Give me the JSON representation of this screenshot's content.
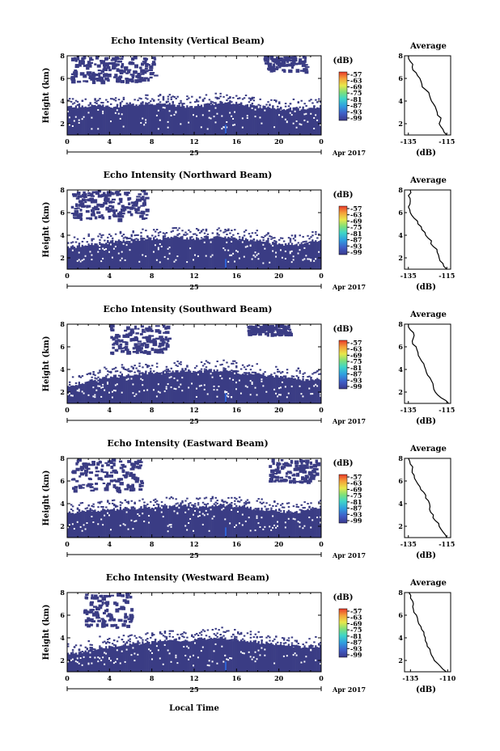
{
  "chart_data": [
    {
      "type": "heatmap",
      "title": "Echo Intensity (Vertical Beam)",
      "ylabel": "Height (km)",
      "x_ticks": [
        "0",
        "4",
        "8",
        "12",
        "16",
        "20",
        "0"
      ],
      "xlim": [
        0,
        24
      ],
      "ylim": [
        1,
        8
      ],
      "y_ticks": [
        "2",
        "4",
        "6",
        "8"
      ],
      "date_day": "25",
      "date_label": "Apr 2017",
      "colorbar": {
        "unit": "(dB)",
        "ticks": [
          "-57",
          "-63",
          "-69",
          "-75",
          "-81",
          "-87",
          "-93",
          "-99"
        ]
      },
      "echo_top_km": [
        3.5,
        3.55,
        3.6,
        3.55,
        3.5,
        3.6,
        3.7,
        3.8,
        3.7,
        3.7,
        3.6,
        3.5,
        3.6,
        3.7,
        3.9,
        3.8,
        3.7,
        3.6,
        3.5,
        3.4,
        3.3,
        3.3,
        3.4,
        3.5,
        3.6
      ],
      "upper_patches": [
        {
          "from_h": 0.3,
          "to_h": 8.3,
          "bottom_km": 5.8
        },
        {
          "from_h": 18.5,
          "to_h": 22.5,
          "bottom_km": 6.7
        }
      ],
      "average": {
        "title": "Average",
        "xlabel": "(dB)",
        "x_ticks": [
          "-135",
          "-115"
        ],
        "y_ticks": [
          "2",
          "4",
          "6",
          "8"
        ],
        "xlim": [
          -137,
          -113
        ],
        "ylim": [
          1,
          8
        ],
        "profile": {
          "height_km": [
            1.0,
            1.5,
            2.0,
            2.5,
            3.0,
            3.5,
            4.0,
            4.5,
            5.0,
            5.5,
            6.0,
            6.5,
            7.0,
            7.5,
            8.0
          ],
          "db": [
            -115,
            -117,
            -119,
            -118,
            -120,
            -121,
            -123,
            -124,
            -126,
            -128,
            -129,
            -131,
            -133,
            -134,
            -135
          ]
        }
      }
    },
    {
      "type": "heatmap",
      "title": "Echo Intensity (Northward Beam)",
      "ylabel": "Height (km)",
      "x_ticks": [
        "0",
        "4",
        "8",
        "12",
        "16",
        "20",
        "0"
      ],
      "xlim": [
        0,
        24
      ],
      "ylim": [
        1,
        8
      ],
      "y_ticks": [
        "2",
        "4",
        "6",
        "8"
      ],
      "date_day": "25",
      "date_label": "Apr 2017",
      "colorbar": {
        "unit": "(dB)",
        "ticks": [
          "-57",
          "-63",
          "-69",
          "-75",
          "-81",
          "-87",
          "-93",
          "-99"
        ]
      },
      "echo_top_km": [
        3.0,
        3.1,
        3.2,
        3.3,
        3.4,
        3.5,
        3.6,
        3.7,
        3.7,
        3.8,
        3.8,
        3.7,
        3.7,
        3.8,
        3.9,
        3.8,
        3.7,
        3.6,
        3.5,
        3.3,
        3.2,
        3.2,
        3.3,
        3.5,
        3.6
      ],
      "upper_patches": [
        {
          "from_h": 0.3,
          "to_h": 7.5,
          "bottom_km": 5.5
        }
      ],
      "average": {
        "title": "Average",
        "xlabel": "(dB)",
        "x_ticks": [
          "-135",
          "-115"
        ],
        "y_ticks": [
          "2",
          "4",
          "6",
          "8"
        ],
        "xlim": [
          -137,
          -113
        ],
        "ylim": [
          1,
          8
        ],
        "profile": {
          "height_km": [
            1.0,
            1.5,
            2.0,
            2.5,
            3.0,
            3.5,
            4.0,
            4.5,
            5.0,
            5.5,
            6.0,
            6.5,
            7.0,
            7.5,
            8.0
          ],
          "db": [
            -115,
            -117,
            -119,
            -120,
            -122,
            -123,
            -126,
            -128,
            -130,
            -132,
            -134,
            -135,
            -134,
            -135,
            -134
          ]
        }
      }
    },
    {
      "type": "heatmap",
      "title": "Echo Intensity (Southward Beam)",
      "ylabel": "Height (km)",
      "x_ticks": [
        "0",
        "4",
        "8",
        "12",
        "16",
        "20",
        "0"
      ],
      "xlim": [
        0,
        24
      ],
      "ylim": [
        1,
        8
      ],
      "y_ticks": [
        "2",
        "4",
        "6",
        "8"
      ],
      "date_day": "25",
      "date_label": "Apr 2017",
      "colorbar": {
        "unit": "(dB)",
        "ticks": [
          "-57",
          "-63",
          "-69",
          "-75",
          "-81",
          "-87",
          "-93",
          "-99"
        ]
      },
      "echo_top_km": [
        2.6,
        2.8,
        3.0,
        3.2,
        3.4,
        3.5,
        3.6,
        3.7,
        3.7,
        3.8,
        3.8,
        3.8,
        3.8,
        3.9,
        3.9,
        3.8,
        3.7,
        3.6,
        3.5,
        3.4,
        3.3,
        3.2,
        3.1,
        3.1,
        3.0
      ],
      "upper_patches": [
        {
          "from_h": 4.0,
          "to_h": 9.5,
          "bottom_km": 5.5
        },
        {
          "from_h": 17.0,
          "to_h": 21.0,
          "bottom_km": 7.2
        }
      ],
      "average": {
        "title": "Average",
        "xlabel": "(dB)",
        "x_ticks": [
          "-135",
          "-115"
        ],
        "y_ticks": [
          "2",
          "4",
          "6",
          "8"
        ],
        "xlim": [
          -137,
          -113
        ],
        "ylim": [
          1,
          8
        ],
        "profile": {
          "height_km": [
            1.0,
            1.5,
            2.0,
            2.5,
            3.0,
            3.5,
            4.0,
            4.5,
            5.0,
            5.5,
            6.0,
            6.5,
            7.0,
            7.5,
            8.0
          ],
          "db": [
            -114,
            -118,
            -121,
            -122,
            -123,
            -125,
            -126,
            -127,
            -129,
            -130,
            -131,
            -133,
            -132,
            -134,
            -135
          ]
        }
      }
    },
    {
      "type": "heatmap",
      "title": "Echo Intensity (Eastward Beam)",
      "ylabel": "Height (km)",
      "x_ticks": [
        "0",
        "4",
        "8",
        "12",
        "16",
        "20",
        "0"
      ],
      "xlim": [
        0,
        24
      ],
      "ylim": [
        1,
        8
      ],
      "y_ticks": [
        "2",
        "4",
        "6",
        "8"
      ],
      "date_day": "25",
      "date_label": "Apr 2017",
      "colorbar": {
        "unit": "(dB)",
        "ticks": [
          "-57",
          "-63",
          "-69",
          "-75",
          "-81",
          "-87",
          "-93",
          "-99"
        ]
      },
      "echo_top_km": [
        3.2,
        3.3,
        3.4,
        3.4,
        3.5,
        3.6,
        3.6,
        3.7,
        3.7,
        3.7,
        3.8,
        3.8,
        3.7,
        3.8,
        3.9,
        3.8,
        3.7,
        3.6,
        3.5,
        3.4,
        3.3,
        3.3,
        3.4,
        3.5,
        3.6
      ],
      "upper_patches": [
        {
          "from_h": 0.3,
          "to_h": 7.0,
          "bottom_km": 5.2
        },
        {
          "from_h": 19.0,
          "to_h": 23.5,
          "bottom_km": 6.0
        }
      ],
      "average": {
        "title": "Average",
        "xlabel": "(dB)",
        "x_ticks": [
          "-135",
          "-115"
        ],
        "y_ticks": [
          "2",
          "4",
          "6",
          "8"
        ],
        "xlim": [
          -137,
          -113
        ],
        "ylim": [
          1,
          8
        ],
        "profile": {
          "height_km": [
            1.0,
            1.5,
            2.0,
            2.5,
            3.0,
            3.5,
            4.0,
            4.5,
            5.0,
            5.5,
            6.0,
            6.5,
            7.0,
            7.5,
            8.0
          ],
          "db": [
            -115,
            -117,
            -119,
            -121,
            -122,
            -124,
            -124,
            -126,
            -127,
            -129,
            -131,
            -132,
            -133,
            -134,
            -135
          ]
        }
      }
    },
    {
      "type": "heatmap",
      "title": "Echo Intensity (Westward Beam)",
      "ylabel": "Height (km)",
      "x_ticks": [
        "0",
        "4",
        "8",
        "12",
        "16",
        "20",
        "0"
      ],
      "xlim": [
        0,
        24
      ],
      "ylim": [
        1,
        8
      ],
      "y_ticks": [
        "2",
        "4",
        "6",
        "8"
      ],
      "date_day": "25",
      "date_label": "Apr 2017",
      "colorbar": {
        "unit": "(dB)",
        "ticks": [
          "-57",
          "-63",
          "-69",
          "-75",
          "-81",
          "-87",
          "-93",
          "-99"
        ]
      },
      "echo_top_km": [
        2.6,
        2.8,
        3.0,
        3.2,
        3.3,
        3.4,
        3.5,
        3.6,
        3.7,
        3.8,
        3.8,
        3.8,
        3.9,
        3.9,
        4.0,
        3.9,
        3.8,
        3.7,
        3.6,
        3.5,
        3.4,
        3.3,
        3.2,
        3.2,
        3.1
      ],
      "upper_patches": [
        {
          "from_h": 1.5,
          "to_h": 6.0,
          "bottom_km": 5.0
        }
      ],
      "average": {
        "title": "Average",
        "xlabel": "(dB)",
        "x_ticks": [
          "-135",
          "-110"
        ],
        "y_ticks": [
          "2",
          "4",
          "6",
          "8"
        ],
        "xlim": [
          -139,
          -108
        ],
        "ylim": [
          1,
          8
        ],
        "profile": {
          "height_km": [
            1.0,
            1.5,
            2.0,
            2.5,
            3.0,
            3.5,
            4.0,
            4.5,
            5.0,
            5.5,
            6.0,
            6.5,
            7.0,
            7.5,
            8.0
          ],
          "db": [
            -111,
            -115,
            -119,
            -121,
            -122,
            -124,
            -125,
            -126,
            -128,
            -130,
            -131,
            -133,
            -133,
            -135,
            -136
          ]
        }
      }
    }
  ],
  "bottom_xlabel": "Local Time"
}
